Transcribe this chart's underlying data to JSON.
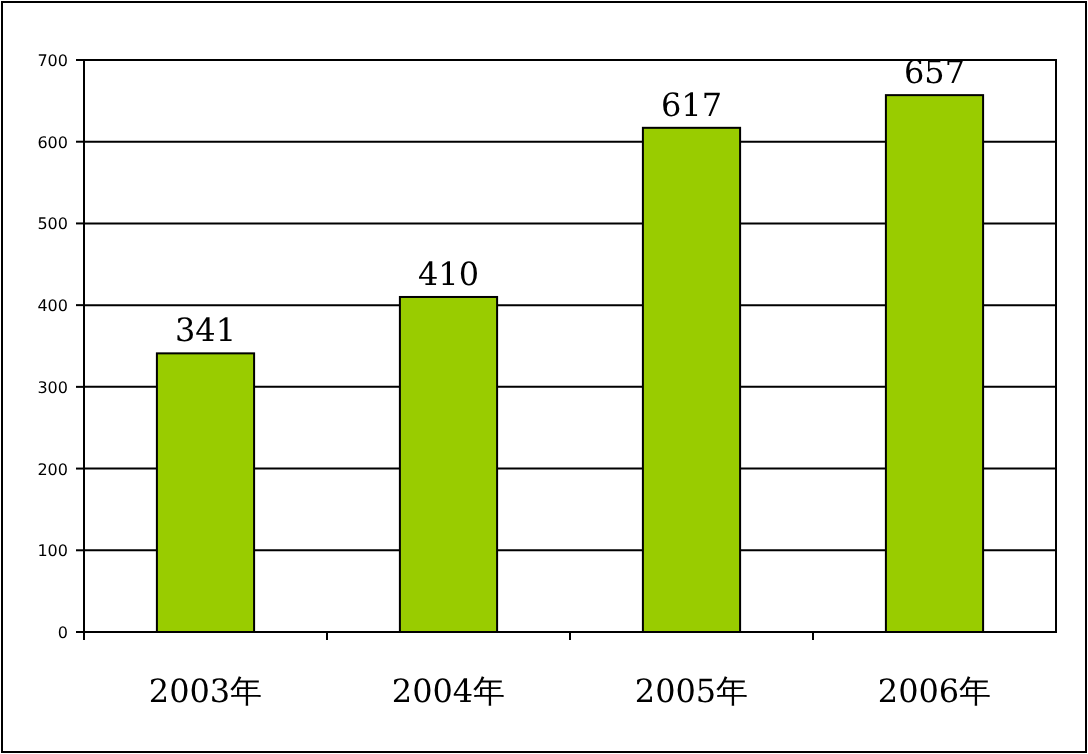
{
  "chart_data": {
    "type": "bar",
    "categories": [
      "2003年",
      "2004年",
      "2005年",
      "2006年"
    ],
    "values": [
      341,
      410,
      617,
      657
    ],
    "color": "#99cc00",
    "ylim": [
      0,
      700
    ],
    "yticks": [
      0,
      100,
      200,
      300,
      400,
      500,
      600,
      700
    ],
    "grid": "y",
    "data_labels": true
  }
}
